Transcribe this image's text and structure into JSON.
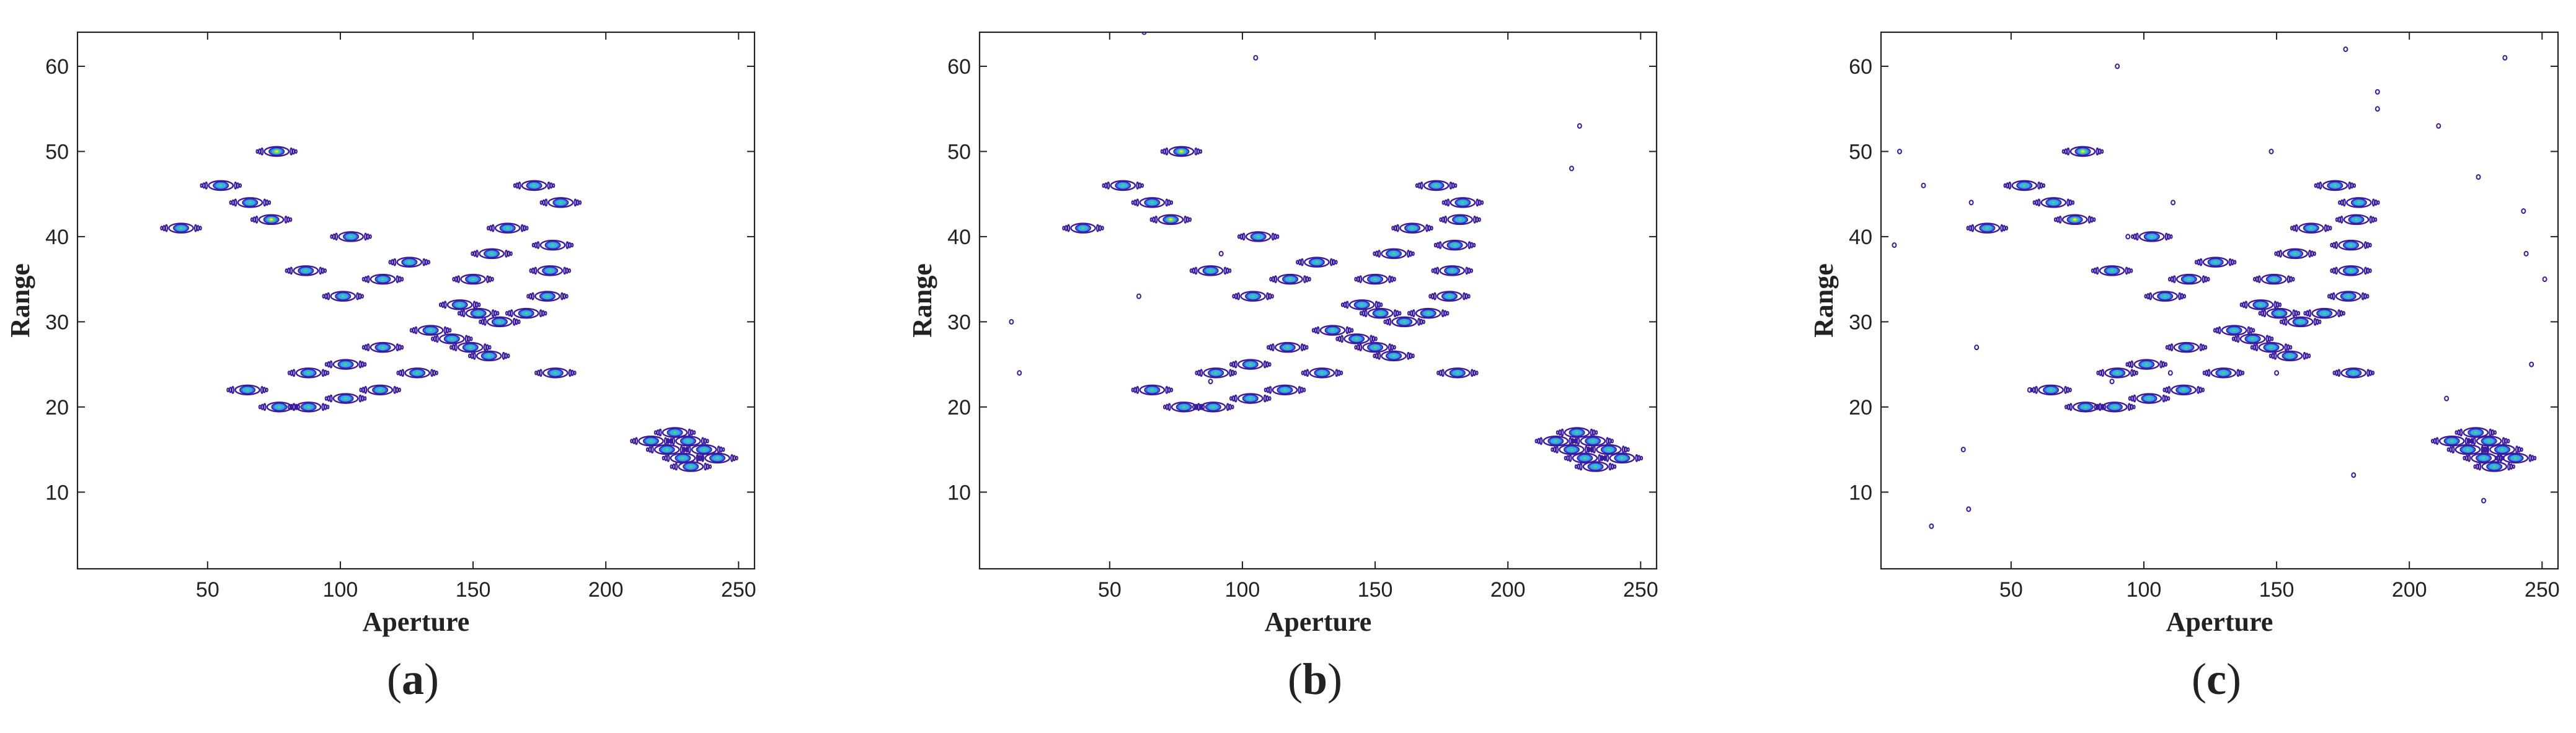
{
  "colors": {
    "outer_contour": "#3a1a9e",
    "mid_contour": "#2e6fe0",
    "fill_core": "#35b0e6",
    "hot_core": "#5fd16a",
    "peak_core": "#e8e23a",
    "axes": "#222222"
  },
  "chart_data": [
    {
      "type": "contour",
      "panel_label": "a",
      "xlabel": "Aperture",
      "ylabel": "Range",
      "xlim": [
        1,
        256
      ],
      "ylim": [
        1,
        64
      ],
      "xticks": [
        50,
        100,
        150,
        200,
        250
      ],
      "yticks": [
        10,
        20,
        30,
        40,
        50,
        60
      ],
      "grid": false,
      "points": [
        [
          76,
          50
        ],
        [
          55,
          46
        ],
        [
          66,
          44
        ],
        [
          74,
          42
        ],
        [
          40,
          41
        ],
        [
          104,
          40
        ],
        [
          173,
          46
        ],
        [
          183,
          44
        ],
        [
          180,
          39
        ],
        [
          163,
          41
        ],
        [
          157,
          38
        ],
        [
          126,
          37
        ],
        [
          87,
          36
        ],
        [
          116,
          35
        ],
        [
          150,
          35
        ],
        [
          179,
          36
        ],
        [
          101,
          33
        ],
        [
          178,
          33
        ],
        [
          145,
          32
        ],
        [
          152,
          31
        ],
        [
          160,
          30
        ],
        [
          170,
          31
        ],
        [
          134,
          29
        ],
        [
          142,
          28
        ],
        [
          149,
          27
        ],
        [
          156,
          26
        ],
        [
          116,
          27
        ],
        [
          129,
          24
        ],
        [
          181,
          24
        ],
        [
          88,
          24
        ],
        [
          102,
          25
        ],
        [
          65,
          22
        ],
        [
          77,
          20
        ],
        [
          88,
          20
        ],
        [
          102,
          21
        ],
        [
          115,
          22
        ],
        [
          217,
          16
        ],
        [
          226,
          17
        ],
        [
          223,
          15
        ],
        [
          231,
          16
        ],
        [
          229,
          14
        ],
        [
          237,
          15
        ],
        [
          242,
          14
        ],
        [
          232,
          13
        ]
      ],
      "strong_points": [
        [
          74,
          42
        ],
        [
          76,
          50
        ]
      ]
    },
    {
      "type": "contour",
      "panel_label": "b",
      "xlabel": "Aperture",
      "ylabel": "Range",
      "xlim": [
        1,
        256
      ],
      "ylim": [
        1,
        64
      ],
      "xticks": [
        50,
        100,
        150,
        200,
        250
      ],
      "yticks": [
        10,
        20,
        30,
        40,
        50,
        60
      ],
      "grid": false,
      "points": [
        [
          77,
          50
        ],
        [
          55,
          46
        ],
        [
          66,
          44
        ],
        [
          73,
          42
        ],
        [
          40,
          41
        ],
        [
          106,
          40
        ],
        [
          173,
          46
        ],
        [
          183,
          44
        ],
        [
          182,
          42
        ],
        [
          180,
          39
        ],
        [
          164,
          41
        ],
        [
          157,
          38
        ],
        [
          128,
          37
        ],
        [
          88,
          36
        ],
        [
          118,
          35
        ],
        [
          150,
          35
        ],
        [
          179,
          36
        ],
        [
          104,
          33
        ],
        [
          178,
          33
        ],
        [
          145,
          32
        ],
        [
          152,
          31
        ],
        [
          161,
          30
        ],
        [
          170,
          31
        ],
        [
          134,
          29
        ],
        [
          143,
          28
        ],
        [
          150,
          27
        ],
        [
          157,
          26
        ],
        [
          117,
          27
        ],
        [
          130,
          24
        ],
        [
          181,
          24
        ],
        [
          90,
          24
        ],
        [
          103,
          25
        ],
        [
          66,
          22
        ],
        [
          78,
          20
        ],
        [
          89,
          20
        ],
        [
          103,
          21
        ],
        [
          116,
          22
        ],
        [
          218,
          16
        ],
        [
          226,
          17
        ],
        [
          224,
          15
        ],
        [
          232,
          16
        ],
        [
          229,
          14
        ],
        [
          238,
          15
        ],
        [
          243,
          14
        ],
        [
          233,
          13
        ]
      ],
      "strong_points": [
        [
          73,
          42
        ],
        [
          77,
          50
        ]
      ],
      "noise_points": [
        [
          13,
          30
        ],
        [
          16,
          24
        ],
        [
          61,
          33
        ],
        [
          88,
          23
        ],
        [
          105,
          61
        ],
        [
          224,
          48
        ],
        [
          227,
          53
        ],
        [
          92,
          38
        ],
        [
          63,
          64
        ]
      ]
    },
    {
      "type": "contour",
      "panel_label": "c",
      "xlabel": "Aperture",
      "ylabel": "Range",
      "xlim": [
        1,
        256
      ],
      "ylim": [
        1,
        64
      ],
      "xticks": [
        50,
        100,
        150,
        200,
        250
      ],
      "yticks": [
        10,
        20,
        30,
        40,
        50,
        60
      ],
      "grid": false,
      "points": [
        [
          77,
          50
        ],
        [
          55,
          46
        ],
        [
          66,
          44
        ],
        [
          74,
          42
        ],
        [
          41,
          41
        ],
        [
          103,
          40
        ],
        [
          172,
          46
        ],
        [
          181,
          44
        ],
        [
          180,
          42
        ],
        [
          178,
          39
        ],
        [
          163,
          41
        ],
        [
          157,
          38
        ],
        [
          127,
          37
        ],
        [
          88,
          36
        ],
        [
          117,
          35
        ],
        [
          149,
          35
        ],
        [
          178,
          36
        ],
        [
          108,
          33
        ],
        [
          177,
          33
        ],
        [
          144,
          32
        ],
        [
          151,
          31
        ],
        [
          159,
          30
        ],
        [
          168,
          31
        ],
        [
          134,
          29
        ],
        [
          141,
          28
        ],
        [
          148,
          27
        ],
        [
          155,
          26
        ],
        [
          116,
          27
        ],
        [
          130,
          24
        ],
        [
          179,
          24
        ],
        [
          90,
          24
        ],
        [
          101,
          25
        ],
        [
          65,
          22
        ],
        [
          78,
          20
        ],
        [
          89,
          20
        ],
        [
          102,
          21
        ],
        [
          115,
          22
        ],
        [
          216,
          16
        ],
        [
          225,
          17
        ],
        [
          222,
          15
        ],
        [
          230,
          16
        ],
        [
          228,
          14
        ],
        [
          235,
          15
        ],
        [
          240,
          14
        ],
        [
          232,
          13
        ]
      ],
      "strong_points": [
        [
          74,
          42
        ],
        [
          77,
          50
        ]
      ],
      "noise_points": [
        [
          8,
          50
        ],
        [
          17,
          46
        ],
        [
          6,
          39
        ],
        [
          35,
          44
        ],
        [
          37,
          27
        ],
        [
          32,
          15
        ],
        [
          34,
          8
        ],
        [
          20,
          6
        ],
        [
          57,
          22
        ],
        [
          90,
          60
        ],
        [
          88,
          23
        ],
        [
          94,
          40
        ],
        [
          111,
          44
        ],
        [
          148,
          50
        ],
        [
          150,
          24
        ],
        [
          176,
          62
        ],
        [
          179,
          12
        ],
        [
          188,
          57
        ],
        [
          188,
          55
        ],
        [
          211,
          53
        ],
        [
          214,
          21
        ],
        [
          226,
          47
        ],
        [
          236,
          61
        ],
        [
          243,
          43
        ],
        [
          244,
          38
        ],
        [
          251,
          35
        ],
        [
          246,
          25
        ],
        [
          228,
          9
        ],
        [
          110,
          24
        ]
      ]
    }
  ]
}
